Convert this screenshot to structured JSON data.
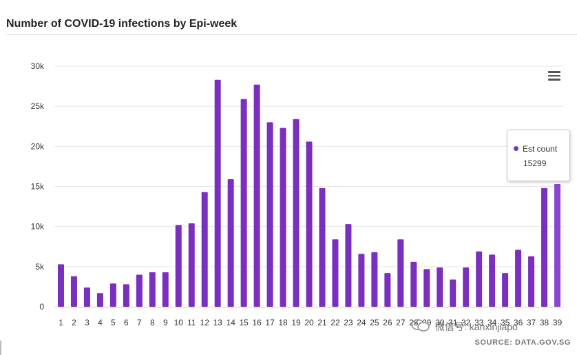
{
  "title": "Number of COVID-19 infections by Epi-week",
  "source": "SOURCE: DATA.GOV.SG",
  "watermark": "微信号: kanxinjiapo",
  "menu_icon": "hamburger-menu-icon",
  "tooltip": {
    "series_name": "Est count",
    "value": "15299"
  },
  "colors": {
    "bar": "#7b2fbe",
    "bar_hover": "#8e44d1",
    "grid": "#e6e6e6",
    "axis": "#cccccc",
    "text": "#333333"
  },
  "chart_data": {
    "type": "bar",
    "title": "Number of COVID-19 infections by Epi-week",
    "xlabel": "",
    "ylabel": "",
    "categories": [
      "1",
      "2",
      "3",
      "4",
      "5",
      "6",
      "7",
      "8",
      "9",
      "10",
      "11",
      "12",
      "13",
      "14",
      "15",
      "16",
      "17",
      "18",
      "19",
      "20",
      "21",
      "22",
      "23",
      "24",
      "25",
      "26",
      "27",
      "28",
      "29",
      "30",
      "31",
      "32",
      "33",
      "34",
      "35",
      "36",
      "37",
      "38",
      "39"
    ],
    "series": [
      {
        "name": "Est count",
        "values": [
          5300,
          3800,
          2400,
          1700,
          2900,
          2800,
          4000,
          4300,
          4300,
          10200,
          10400,
          14300,
          28300,
          15900,
          25900,
          27700,
          23000,
          22300,
          23400,
          20600,
          14800,
          8400,
          10300,
          6600,
          6800,
          4200,
          8400,
          5600,
          4700,
          4900,
          3400,
          4900,
          6900,
          6500,
          4200,
          7100,
          6300,
          14800,
          15299
        ]
      }
    ],
    "ylim": [
      0,
      30000
    ],
    "yticks": [
      0,
      5000,
      10000,
      15000,
      20000,
      25000,
      30000
    ],
    "ytick_labels": [
      "0",
      "5k",
      "10k",
      "15k",
      "20k",
      "25k",
      "30k"
    ],
    "grid": true,
    "legend": "none",
    "highlighted_index": 38
  }
}
